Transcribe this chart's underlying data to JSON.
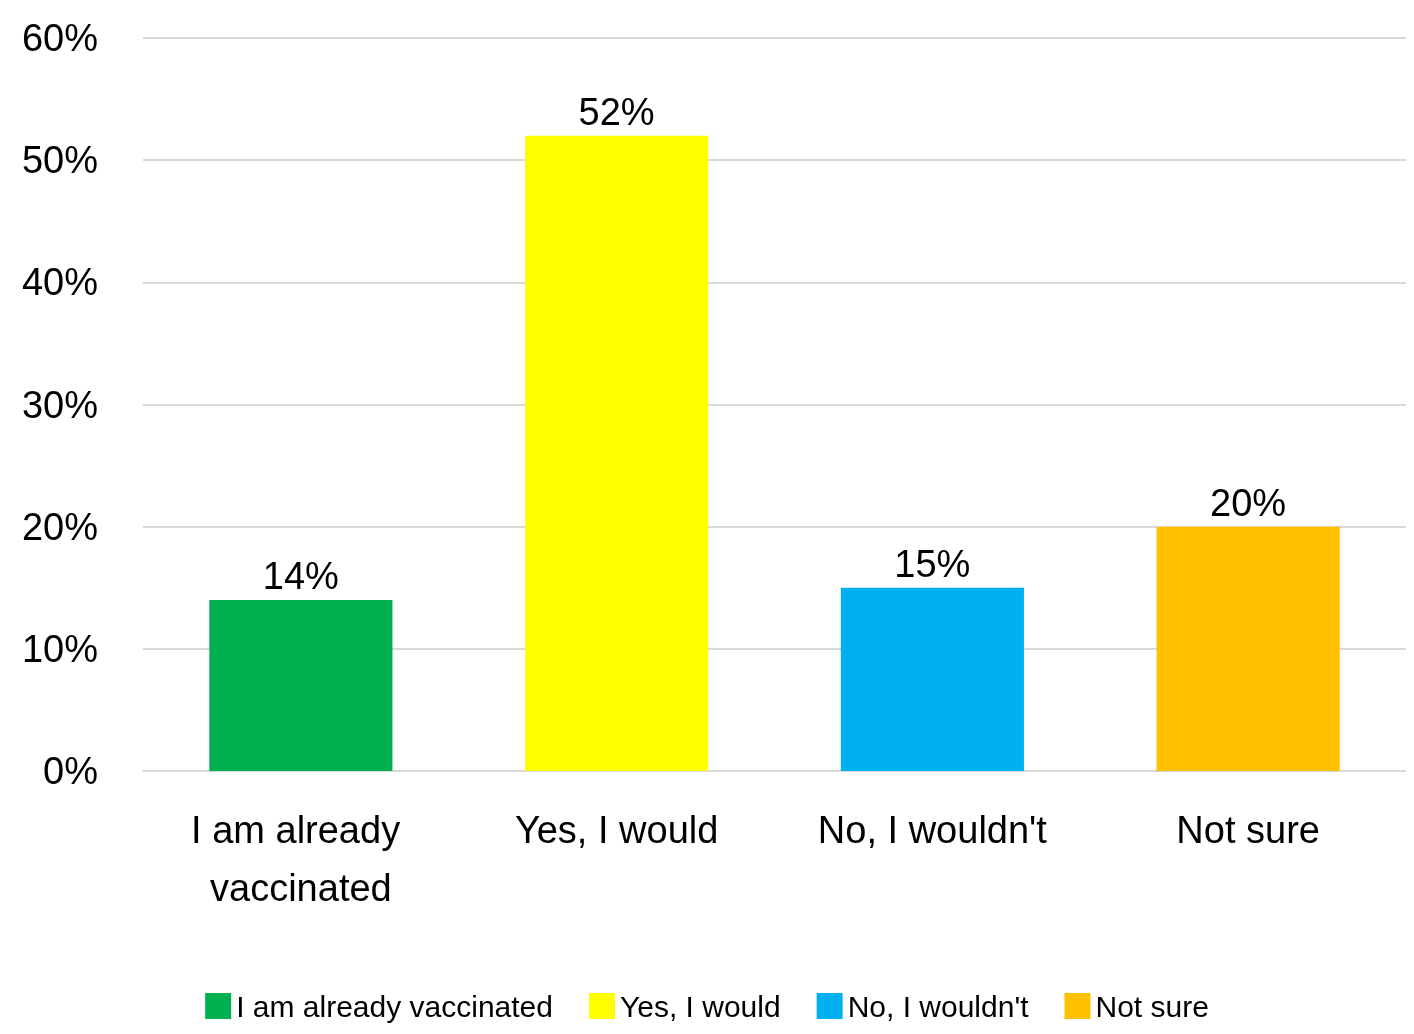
{
  "chart_data": {
    "type": "bar",
    "categories": [
      "I am already vaccinated",
      "Yes, I would",
      "No, I wouldn't",
      "Not sure"
    ],
    "series": [
      {
        "name": "I am already vaccinated",
        "color": "#00b050",
        "values": [
          14,
          null,
          null,
          null
        ],
        "value_labels": [
          "14%",
          null,
          null,
          null
        ]
      },
      {
        "name": "Yes, I would",
        "color": "#ffff00",
        "values": [
          null,
          52,
          null,
          null
        ],
        "value_labels": [
          null,
          "52%",
          null,
          null
        ]
      },
      {
        "name": "No, I wouldn't",
        "color": "#00b0f0",
        "values": [
          null,
          null,
          15,
          null
        ],
        "value_labels": [
          null,
          null,
          "15%",
          null
        ]
      },
      {
        "name": "Not sure",
        "color": "#ffc000",
        "values": [
          null,
          null,
          null,
          20
        ],
        "value_labels": [
          null,
          null,
          null,
          "20%"
        ]
      }
    ],
    "stacked": true,
    "ylim": [
      0,
      60
    ],
    "yticks": [
      {
        "value": 0,
        "label": "0%"
      },
      {
        "value": 10,
        "label": "10%"
      },
      {
        "value": 20,
        "label": "20%"
      },
      {
        "value": 30,
        "label": "30%"
      },
      {
        "value": 40,
        "label": "40%"
      },
      {
        "value": 50,
        "label": "50%"
      },
      {
        "value": 60,
        "label": "60%"
      }
    ],
    "grid": "y",
    "legend": "bottom"
  }
}
